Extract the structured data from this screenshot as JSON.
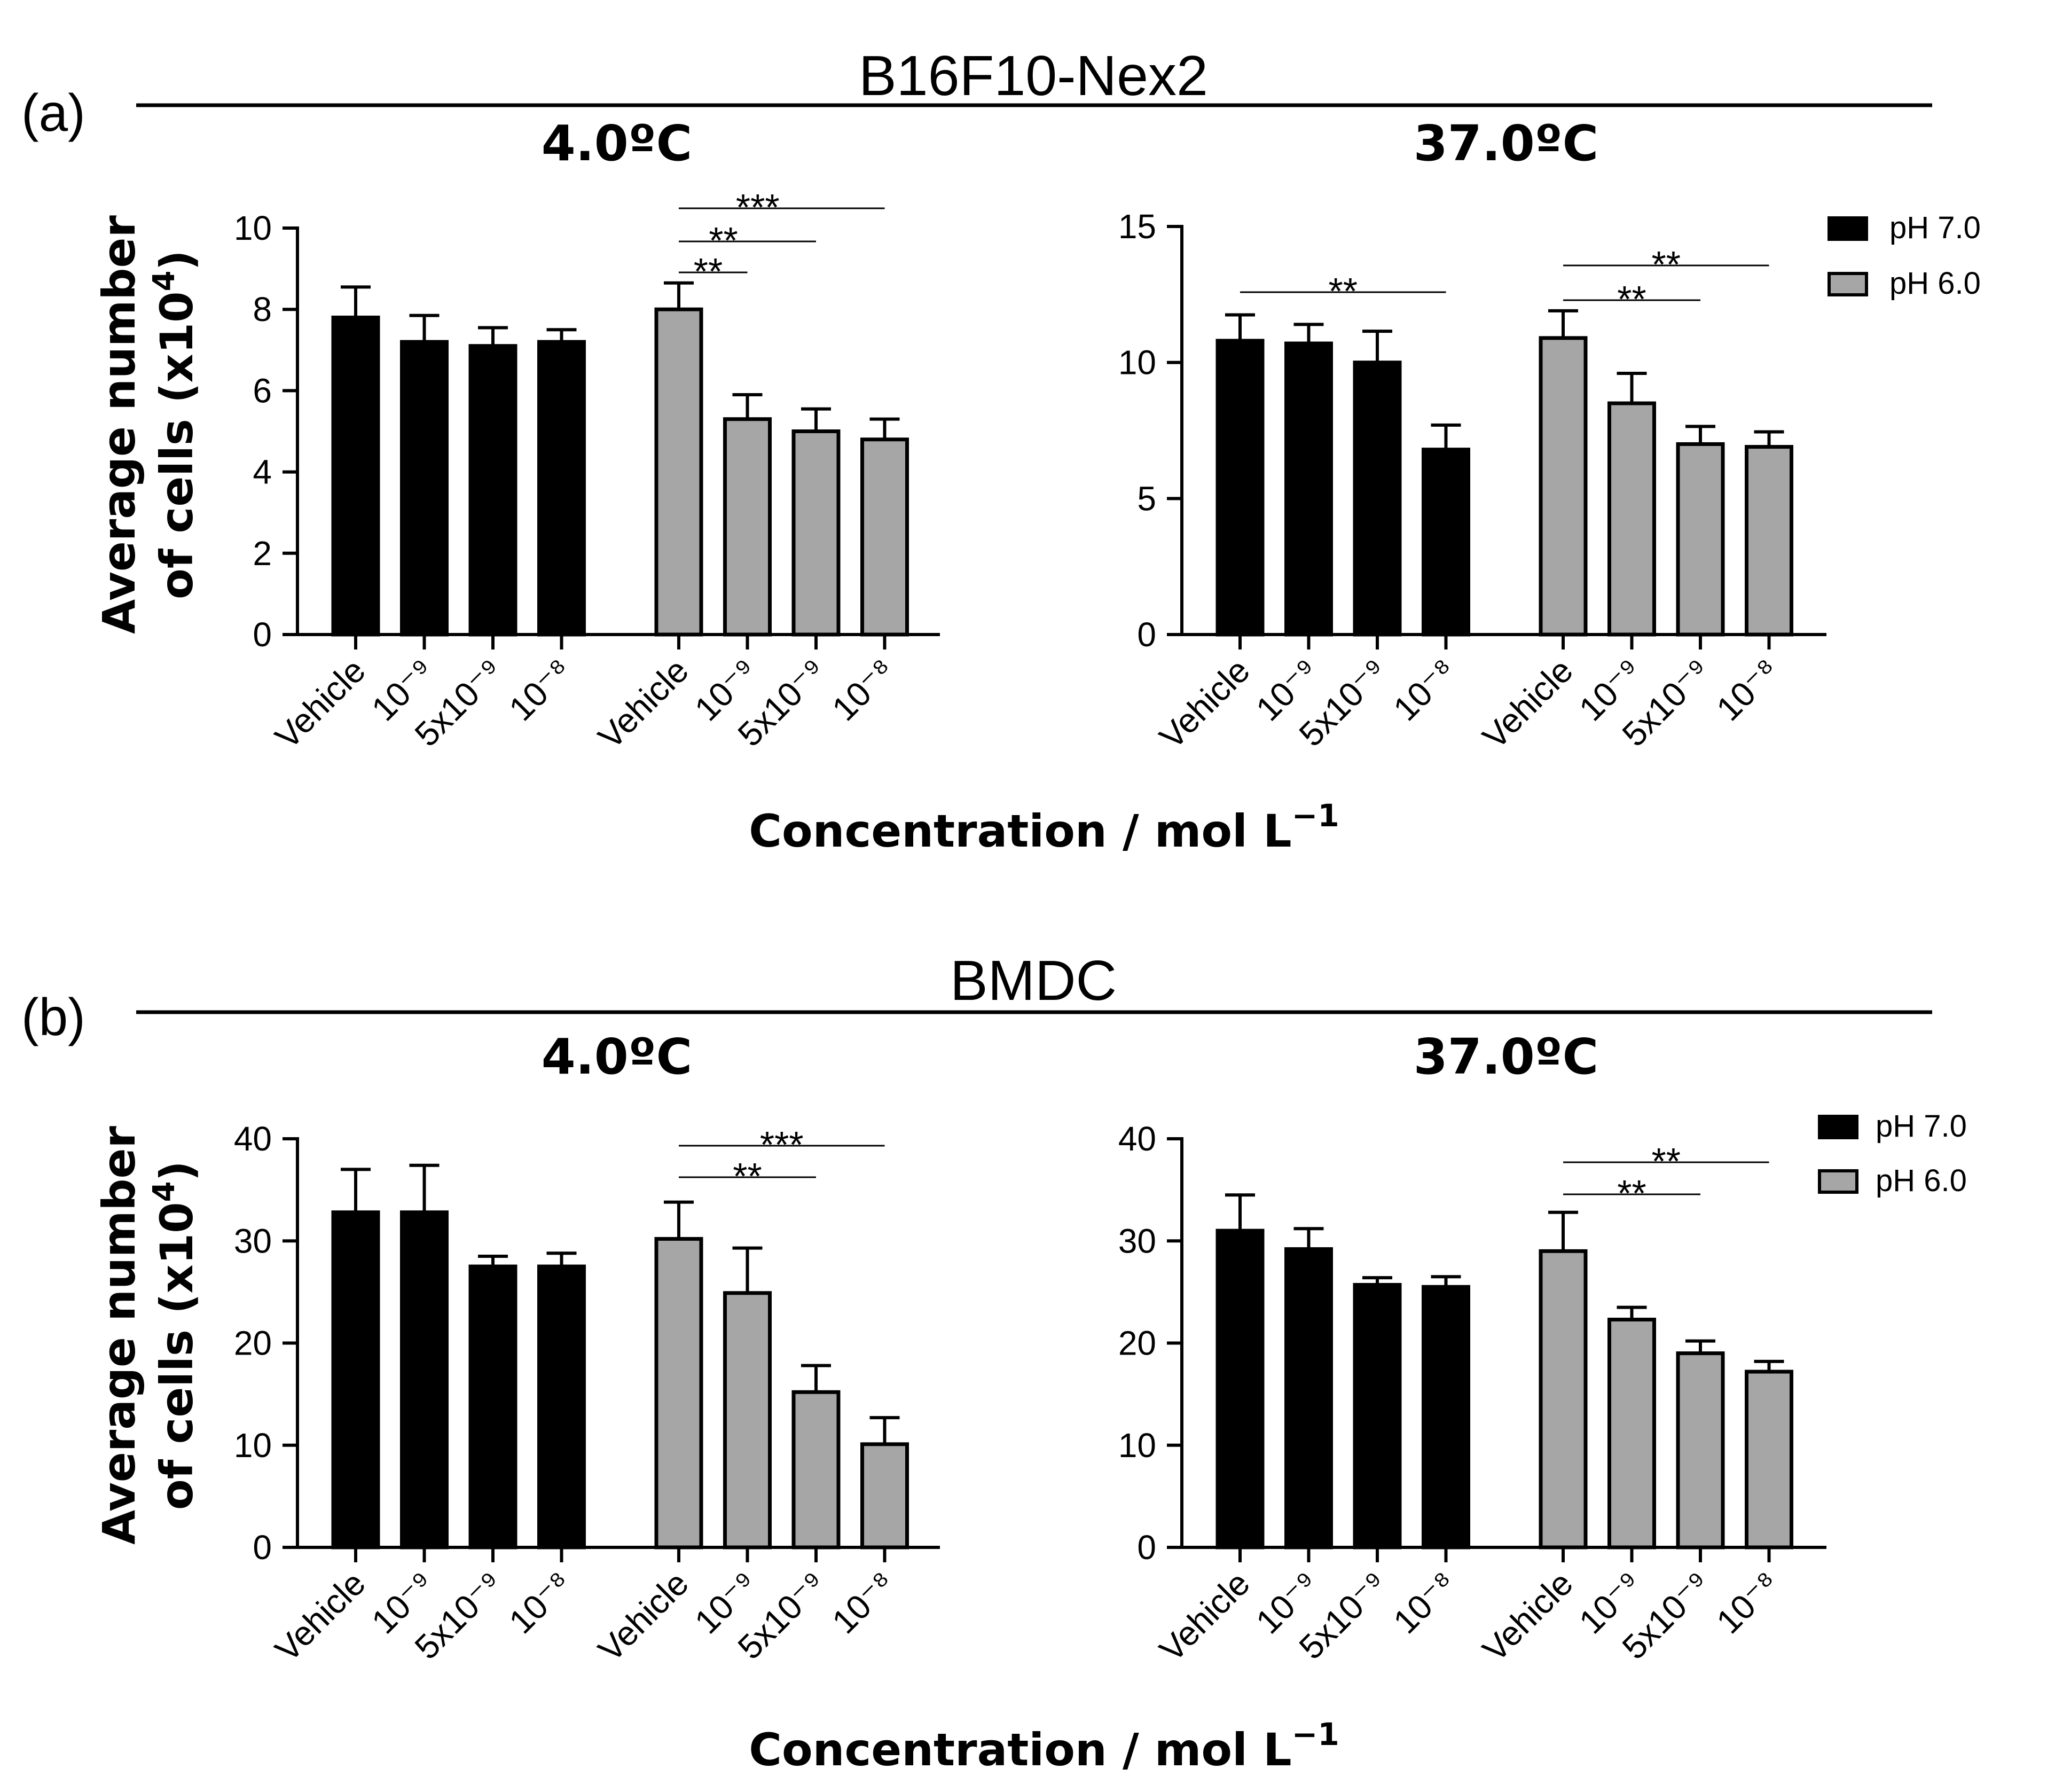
{
  "colors": {
    "ph7": "#000000",
    "ph6": "#a6a6a6",
    "axis": "#000000",
    "background": "#ffffff"
  },
  "panel_a": {
    "label": "(a)",
    "title": "B16F10-Nex2",
    "ylabel_line1": "Average number",
    "ylabel_line2": "of cells (x10",
    "ylabel_exp": "4",
    "ylabel_close": ")",
    "xlabel_main": "Concentration / mol L",
    "xlabel_exp": "−1"
  },
  "panel_b": {
    "label": "(b)",
    "title": "BMDC",
    "ylabel_line1": "Average number",
    "ylabel_line2": "of cells (x10",
    "ylabel_exp": "4",
    "ylabel_close": ")",
    "xlabel_main": "Concentration / mol L",
    "xlabel_exp": "−1"
  },
  "legend": [
    {
      "label": "pH 7.0",
      "color": "#000000"
    },
    {
      "label": "pH 6.0",
      "color": "#a6a6a6"
    }
  ],
  "chart_data": [
    {
      "id": "a-4",
      "type": "bar",
      "title": "4.0ºC",
      "ylim": [
        0,
        10
      ],
      "yticks": [
        0,
        2,
        4,
        6,
        8,
        10
      ],
      "categories": [
        "Vehicle",
        "10⁻⁹",
        "5x10⁻⁹",
        "10⁻⁸"
      ],
      "series": [
        {
          "name": "pH 7.0",
          "values": [
            7.8,
            7.2,
            7.1,
            7.2
          ],
          "errors": [
            0.75,
            0.65,
            0.45,
            0.3
          ]
        },
        {
          "name": "pH 6.0",
          "values": [
            8.0,
            5.3,
            5.0,
            4.8
          ],
          "errors": [
            0.65,
            0.6,
            0.55,
            0.5
          ]
        }
      ],
      "significance": [
        {
          "series": 1,
          "from": 0,
          "to": 1,
          "label": "**"
        },
        {
          "series": 1,
          "from": 0,
          "to": 2,
          "label": "**"
        },
        {
          "series": 1,
          "from": 0,
          "to": 3,
          "label": "***"
        }
      ]
    },
    {
      "id": "a-37",
      "type": "bar",
      "title": "37.0ºC",
      "ylim": [
        0,
        15
      ],
      "yticks": [
        0,
        5,
        10,
        15
      ],
      "categories": [
        "Vehicle",
        "10⁻⁹",
        "5x10⁻⁹",
        "10⁻⁸"
      ],
      "series": [
        {
          "name": "pH 7.0",
          "values": [
            10.8,
            10.7,
            10.0,
            6.8
          ],
          "errors": [
            0.95,
            0.7,
            1.15,
            0.9
          ]
        },
        {
          "name": "pH 6.0",
          "values": [
            10.9,
            8.5,
            7.0,
            6.9
          ],
          "errors": [
            1.0,
            1.1,
            0.65,
            0.55
          ]
        }
      ],
      "significance": [
        {
          "series": 0,
          "from": 0,
          "to": 3,
          "label": "**"
        },
        {
          "series": 1,
          "from": 0,
          "to": 2,
          "label": "**"
        },
        {
          "series": 1,
          "from": 0,
          "to": 3,
          "label": "**"
        }
      ]
    },
    {
      "id": "b-4",
      "type": "bar",
      "title": "4.0ºC",
      "ylim": [
        0,
        40
      ],
      "yticks": [
        0,
        10,
        20,
        30,
        40
      ],
      "categories": [
        "Vehicle",
        "10⁻⁹",
        "5x10⁻⁹",
        "10⁻⁸"
      ],
      "series": [
        {
          "name": "pH 7.0",
          "values": [
            32.8,
            32.8,
            27.5,
            27.5
          ],
          "errors": [
            4.2,
            4.6,
            1.0,
            1.3
          ]
        },
        {
          "name": "pH 6.0",
          "values": [
            30.2,
            24.9,
            15.2,
            10.1
          ],
          "errors": [
            3.6,
            4.4,
            2.6,
            2.6
          ]
        }
      ],
      "significance": [
        {
          "series": 1,
          "from": 0,
          "to": 2,
          "label": "**"
        },
        {
          "series": 1,
          "from": 0,
          "to": 3,
          "label": "***"
        }
      ]
    },
    {
      "id": "b-37",
      "type": "bar",
      "title": "37.0ºC",
      "ylim": [
        0,
        40
      ],
      "yticks": [
        0,
        10,
        20,
        30,
        40
      ],
      "categories": [
        "Vehicle",
        "10⁻⁹",
        "5x10⁻⁹",
        "10⁻⁸"
      ],
      "series": [
        {
          "name": "pH 7.0",
          "values": [
            31.0,
            29.2,
            25.7,
            25.5
          ],
          "errors": [
            3.5,
            2.0,
            0.7,
            1.0
          ]
        },
        {
          "name": "pH 6.0",
          "values": [
            29.0,
            22.3,
            19.0,
            17.2
          ],
          "errors": [
            3.8,
            1.2,
            1.2,
            1.0
          ]
        }
      ],
      "significance": [
        {
          "series": 1,
          "from": 0,
          "to": 2,
          "label": "**"
        },
        {
          "series": 1,
          "from": 0,
          "to": 3,
          "label": "**"
        }
      ]
    }
  ]
}
